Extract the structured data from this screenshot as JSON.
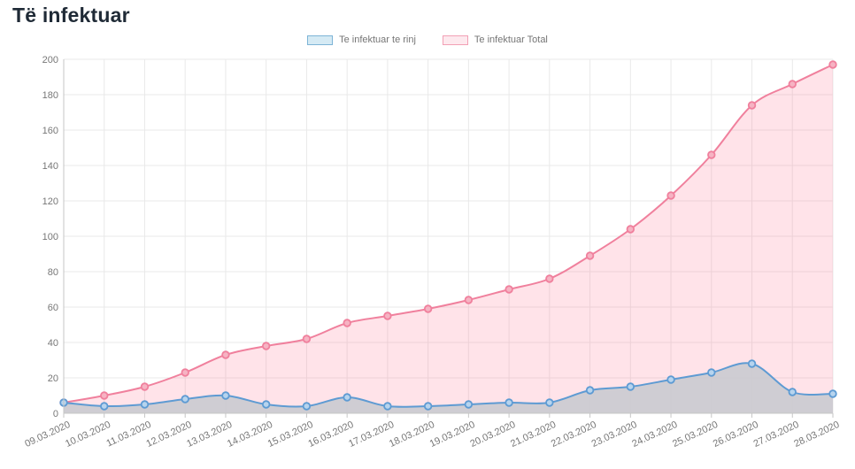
{
  "chart_data": {
    "type": "line",
    "title": "Të infektuar",
    "x": [
      "09.03.2020",
      "10.03.2020",
      "11.03.2020",
      "12.03.2020",
      "13.03.2020",
      "14.03.2020",
      "15.03.2020",
      "16.03.2020",
      "17.03.2020",
      "18.03.2020",
      "19.03.2020",
      "20.03.2020",
      "21.03.2020",
      "22.03.2020",
      "23.03.2020",
      "24.03.2020",
      "25.03.2020",
      "26.03.2020",
      "27.03.2020",
      "28.03.2020"
    ],
    "series": [
      {
        "name": "Te infektuar te rinj",
        "values": [
          6,
          4,
          5,
          8,
          10,
          5,
          4,
          9,
          4,
          4,
          5,
          6,
          6,
          13,
          15,
          19,
          23,
          28,
          12,
          11
        ],
        "line_color": "#5e9bd3",
        "area_color": "rgba(203,203,209,0.93)",
        "marker_fill": "#b7d4ee",
        "legend_fill": "#d5eaf4",
        "legend_border": "#7db4d6"
      },
      {
        "name": "Te infektuar Total",
        "values": [
          6,
          10,
          15,
          23,
          33,
          38,
          42,
          51,
          55,
          59,
          64,
          70,
          76,
          89,
          104,
          123,
          146,
          174,
          186,
          197
        ],
        "line_color": "#f0809d",
        "area_color": "rgba(255,99,132,0.18)",
        "marker_fill": "#f6b3c3",
        "legend_fill": "#fde9ee",
        "legend_border": "#f2a0b5"
      }
    ],
    "ylim": [
      0,
      200
    ],
    "ytick_step": 20,
    "grid": true,
    "legend_position": "top",
    "x_label_rotation": -25,
    "axis": {
      "label_color": "#777777",
      "grid_color": "#e9e9e9",
      "axis_color": "#c6c6c6",
      "title_color": "#1f2a36"
    }
  }
}
